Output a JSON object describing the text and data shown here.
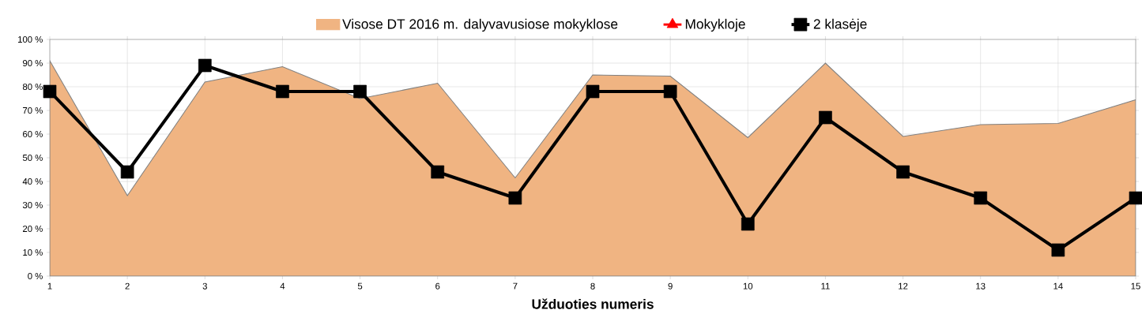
{
  "chart_data": {
    "type": "line",
    "xlabel": "Užduoties numeris",
    "x": [
      1,
      2,
      3,
      4,
      5,
      6,
      7,
      8,
      9,
      10,
      11,
      12,
      13,
      14,
      15
    ],
    "xlim": [
      1,
      15
    ],
    "xticks": [
      1,
      2,
      3,
      4,
      5,
      6,
      7,
      8,
      9,
      10,
      11,
      12,
      13,
      14,
      15
    ],
    "ylim": [
      0,
      100
    ],
    "yticks": [
      {
        "value": 0,
        "label": "0 %"
      },
      {
        "value": 10,
        "label": "10 %"
      },
      {
        "value": 20,
        "label": "20 %"
      },
      {
        "value": 30,
        "label": "30 %"
      },
      {
        "value": 40,
        "label": "40 %"
      },
      {
        "value": 50,
        "label": "50 %"
      },
      {
        "value": 60,
        "label": "60 %"
      },
      {
        "value": 70,
        "label": "70 %"
      },
      {
        "value": 80,
        "label": "80 %"
      },
      {
        "value": 90,
        "label": "90 %"
      },
      {
        "value": 100,
        "label": "100 %"
      }
    ],
    "grid": true,
    "legend": "top",
    "series": [
      {
        "name": "Visose DT 2016 m. dalyvavusiose mokyklose",
        "type": "area",
        "color": "#f0b482",
        "marker": "none",
        "values": [
          91,
          34,
          82,
          88.5,
          75,
          81.5,
          41.5,
          85,
          84.5,
          58.5,
          90,
          59,
          64,
          64.5,
          74.5
        ]
      },
      {
        "name": "Mokykloje",
        "color": "#ff0000",
        "marker": "triangle",
        "values": [
          null,
          null,
          null,
          null,
          null,
          null,
          null,
          null,
          null,
          null,
          null,
          null,
          null,
          null,
          null
        ]
      },
      {
        "name": "2 klasėje",
        "color": "#000000",
        "marker": "square",
        "values": [
          78,
          44,
          89,
          78,
          78,
          44,
          33,
          78,
          78,
          22,
          67,
          44,
          33,
          11,
          33
        ]
      }
    ]
  }
}
